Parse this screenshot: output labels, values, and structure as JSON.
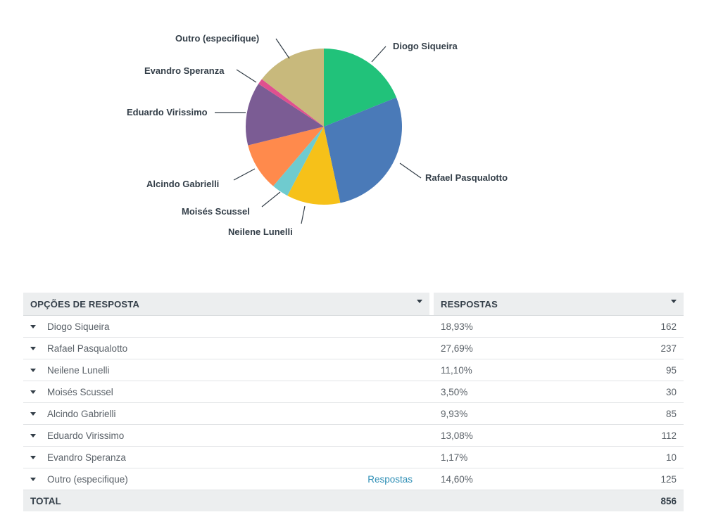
{
  "chart_data": {
    "type": "pie",
    "slices": [
      {
        "label": "Diogo Siqueira",
        "percent": 18.93,
        "count": 162,
        "color": "#21c27a"
      },
      {
        "label": "Rafael Pasqualotto",
        "percent": 27.69,
        "count": 237,
        "color": "#4a7ab8"
      },
      {
        "label": "Neilene Lunelli",
        "percent": 11.1,
        "count": 95,
        "color": "#f6c119"
      },
      {
        "label": "Moisés Scussel",
        "percent": 3.5,
        "count": 30,
        "color": "#6fcbcf"
      },
      {
        "label": "Alcindo Gabrielli",
        "percent": 9.93,
        "count": 85,
        "color": "#ff8a4c"
      },
      {
        "label": "Eduardo Virissimo",
        "percent": 13.08,
        "count": 112,
        "color": "#7b5c94"
      },
      {
        "label": "Evandro Speranza",
        "percent": 1.17,
        "count": 10,
        "color": "#e0508f"
      },
      {
        "label": "Outro (especifique)",
        "percent": 14.6,
        "count": 125,
        "color": "#c8b97c"
      }
    ]
  },
  "table": {
    "header_options": "OPÇÕES DE RESPOSTA",
    "header_responses": "RESPOSTAS",
    "rows": [
      {
        "option": "Diogo Siqueira",
        "percent": "18,93%",
        "count": "162",
        "link": ""
      },
      {
        "option": "Rafael Pasqualotto",
        "percent": "27,69%",
        "count": "237",
        "link": ""
      },
      {
        "option": "Neilene Lunelli",
        "percent": "11,10%",
        "count": "95",
        "link": ""
      },
      {
        "option": "Moisés Scussel",
        "percent": "3,50%",
        "count": "30",
        "link": ""
      },
      {
        "option": "Alcindo Gabrielli",
        "percent": "9,93%",
        "count": "85",
        "link": ""
      },
      {
        "option": "Eduardo Virissimo",
        "percent": "13,08%",
        "count": "112",
        "link": ""
      },
      {
        "option": "Evandro Speranza",
        "percent": "1,17%",
        "count": "10",
        "link": ""
      },
      {
        "option": "Outro (especifique)",
        "percent": "14,60%",
        "count": "125",
        "link": "Respostas"
      }
    ],
    "total_label": "TOTAL",
    "total_value": "856"
  }
}
